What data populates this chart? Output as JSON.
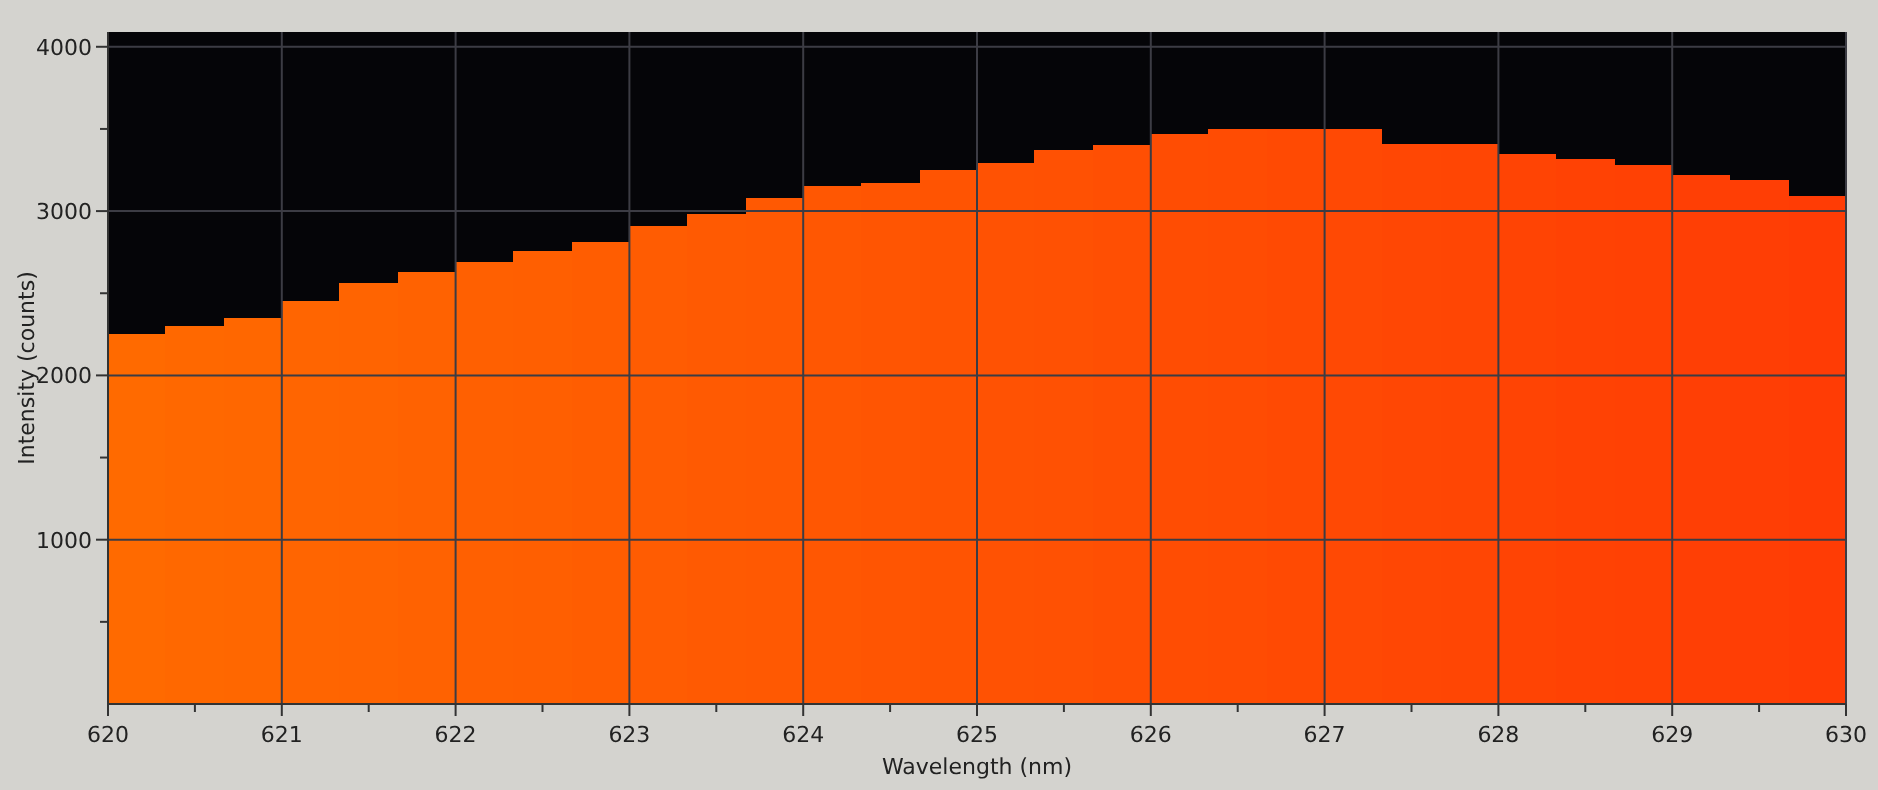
{
  "chart_data": {
    "type": "histogram",
    "xlabel": "Wavelength (nm)",
    "ylabel": "Intensity (counts)",
    "bins": [
      620,
      620.33,
      620.67,
      621,
      621.33,
      621.67,
      622,
      622.33,
      622.67,
      623,
      623.33,
      623.67,
      624,
      624.33,
      624.67,
      625,
      625.33,
      625.67,
      626,
      626.33,
      626.67,
      627,
      627.33,
      627.67,
      628,
      628.33,
      628.67,
      629,
      629.33,
      629.67,
      630
    ],
    "values": [
      2250,
      2300,
      2350,
      2450,
      2560,
      2630,
      2690,
      2760,
      2810,
      2910,
      2980,
      3080,
      3150,
      3170,
      3250,
      3290,
      3370,
      3400,
      3470,
      3500,
      3500,
      3500,
      3410,
      3410,
      3350,
      3320,
      3280,
      3220,
      3190,
      3090
    ],
    "colors": [
      "#ff6a00",
      "#ff6800",
      "#ff6700",
      "#ff6501",
      "#ff6401",
      "#ff6201",
      "#ff6001",
      "#ff5f01",
      "#ff5d01",
      "#ff5c02",
      "#ff5a02",
      "#ff5902",
      "#ff5702",
      "#ff5502",
      "#ff5402",
      "#ff5203",
      "#ff5103",
      "#ff4f03",
      "#ff4d03",
      "#ff4c03",
      "#ff4a03",
      "#ff4904",
      "#ff4704",
      "#ff4604",
      "#ff4404",
      "#ff4204",
      "#ff4104",
      "#ff3f05",
      "#ff3e05",
      "#ff3c05"
    ],
    "xlim": [
      620,
      630
    ],
    "xticks": [
      620,
      {
        "value": 620.5,
        "label": null
      },
      621,
      {
        "value": 621.5,
        "label": null
      },
      622,
      {
        "value": 622.5,
        "label": null
      },
      623,
      {
        "value": 623.5,
        "label": null
      },
      624,
      {
        "value": 624.5,
        "label": null
      },
      625,
      {
        "value": 625.5,
        "label": null
      },
      626,
      {
        "value": 626.5,
        "label": null
      },
      627,
      {
        "value": 627.5,
        "label": null
      },
      628,
      {
        "value": 628.5,
        "label": null
      },
      629,
      {
        "value": 629.5,
        "label": null
      },
      630
    ],
    "ylim": [
      0,
      4090
    ],
    "yticks": [
      {
        "value": 500,
        "label": null
      },
      1000,
      {
        "value": 1500,
        "label": null
      },
      2000,
      {
        "value": 2500,
        "label": null
      },
      3000,
      {
        "value": 3500,
        "label": null
      },
      4000
    ],
    "grid": true
  }
}
